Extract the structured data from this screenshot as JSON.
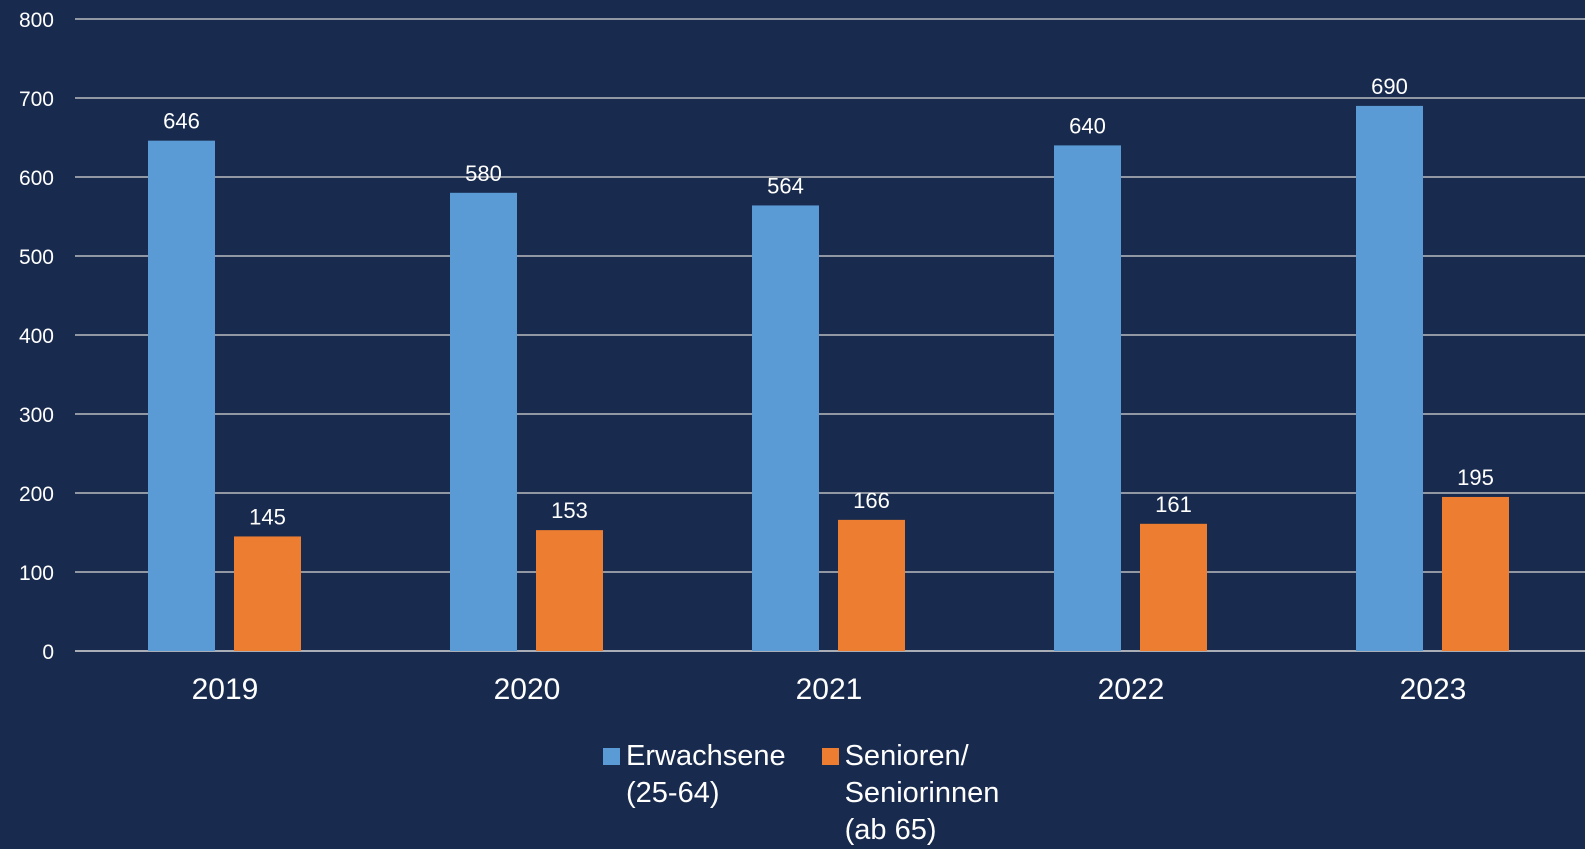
{
  "chart_data": {
    "type": "bar",
    "categories": [
      "2019",
      "2020",
      "2021",
      "2022",
      "2023"
    ],
    "series": [
      {
        "name": "Erwachsene\n(25-64)",
        "values": [
          646,
          580,
          564,
          640,
          690
        ],
        "color": "#5b9bd5"
      },
      {
        "name": "Senioren/\nSeniorinnen\n(ab 65)",
        "values": [
          145,
          153,
          166,
          161,
          195
        ],
        "color": "#ed7d31"
      }
    ],
    "yticks": [
      "0",
      "100",
      "200",
      "300",
      "400",
      "500",
      "600",
      "700",
      "800"
    ],
    "ylim": [
      0,
      800
    ],
    "grid": true,
    "legend_position": "bottom",
    "background": "#182a4d",
    "gridline_color": "#d9d9d9"
  }
}
